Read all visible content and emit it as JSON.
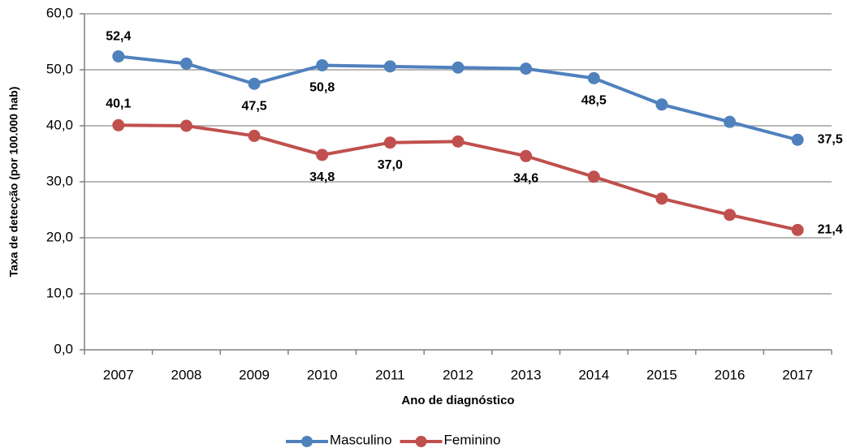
{
  "chart_data": {
    "type": "line",
    "x_label": "Ano de diagnóstico",
    "y_label": "Taxa de detecção (por 100.000 hab)",
    "categories": [
      "2007",
      "2008",
      "2009",
      "2010",
      "2011",
      "2012",
      "2013",
      "2014",
      "2015",
      "2016",
      "2017"
    ],
    "series": [
      {
        "name": "Masculino",
        "color": "#4f81bd",
        "values": [
          52.4,
          51.1,
          47.5,
          50.8,
          50.6,
          50.4,
          50.2,
          48.5,
          43.8,
          40.7,
          37.5
        ],
        "value_labels": [
          "52,4",
          null,
          "47,5",
          "50,8",
          null,
          null,
          null,
          "48,5",
          null,
          null,
          "37,5"
        ]
      },
      {
        "name": "Feminino",
        "color": "#c0504d",
        "values": [
          40.1,
          40.0,
          38.2,
          34.8,
          37.0,
          37.2,
          34.6,
          30.9,
          27.0,
          24.1,
          21.4
        ],
        "value_labels": [
          "40,1",
          null,
          null,
          "34,8",
          "37,0",
          null,
          "34,6",
          null,
          null,
          null,
          "21,4"
        ]
      }
    ],
    "ylim": [
      0,
      60
    ],
    "yticks": [
      {
        "value": 0,
        "label": "0,0"
      },
      {
        "value": 10,
        "label": "10,0"
      },
      {
        "value": 20,
        "label": "20,0"
      },
      {
        "value": 30,
        "label": "30,0"
      },
      {
        "value": 40,
        "label": "40,0"
      },
      {
        "value": 50,
        "label": "50,0"
      },
      {
        "value": 60,
        "label": "60,0"
      }
    ],
    "grid": true,
    "legend": "bottom"
  }
}
